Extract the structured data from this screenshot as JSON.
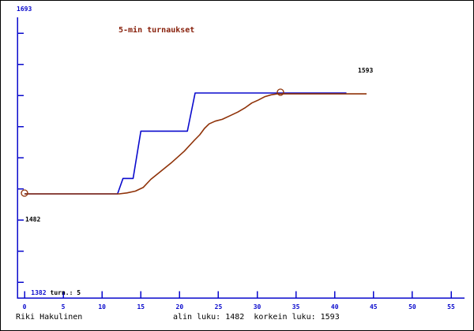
{
  "chart_data": {
    "type": "line",
    "title": "5-min turnaukset",
    "xlabel": "",
    "ylabel": "",
    "x_ticks": [
      0,
      5,
      10,
      15,
      20,
      25,
      30,
      35,
      40,
      45,
      50,
      55
    ],
    "y_axis_labels": {
      "top": "1693",
      "mid": "1482",
      "bottom": "1382"
    },
    "grid": false,
    "legend": "none",
    "series": [
      {
        "name": "tournament-rating-steps",
        "color_key": "blue",
        "points": [
          [
            0,
            1482
          ],
          [
            12,
            1482
          ],
          [
            12.7,
            1499
          ],
          [
            14,
            1499
          ],
          [
            15,
            1551
          ],
          [
            21,
            1551
          ],
          [
            22,
            1593
          ],
          [
            41.5,
            1593
          ]
        ]
      },
      {
        "name": "smoothed-rating-curve",
        "color_key": "red",
        "points": [
          [
            0,
            1482
          ],
          [
            12.2,
            1482
          ],
          [
            13.2,
            1483
          ],
          [
            14.3,
            1485
          ],
          [
            15.3,
            1489
          ],
          [
            16.3,
            1498
          ],
          [
            17.3,
            1505
          ],
          [
            18.9,
            1516
          ],
          [
            20.6,
            1529
          ],
          [
            21.9,
            1541
          ],
          [
            22.6,
            1547
          ],
          [
            23.2,
            1554
          ],
          [
            23.8,
            1559
          ],
          [
            24.6,
            1562
          ],
          [
            25.5,
            1564
          ],
          [
            26.5,
            1568
          ],
          [
            27.5,
            1572
          ],
          [
            28.5,
            1577
          ],
          [
            29.3,
            1582
          ],
          [
            30.1,
            1585
          ],
          [
            31.0,
            1589
          ],
          [
            31.8,
            1591
          ],
          [
            32.6,
            1592
          ],
          [
            41.4,
            1592
          ],
          [
            44.1,
            1592
          ]
        ]
      }
    ],
    "markers": [
      {
        "x": 0,
        "rating": 1482
      },
      {
        "x": 33,
        "rating": 1593
      }
    ],
    "lowest_rating": 1482,
    "highest_rating": 1593,
    "tournament_count": 5
  },
  "annotations": {
    "peak_label": "1593",
    "min_axis_label": "1382",
    "turn_label": "turn.: 5"
  },
  "footer": {
    "player": "Riki Hakulinen",
    "stats": "alin luku: 1482  korkein luku: 1593"
  },
  "colors": {
    "blue": "#0a0acd",
    "red": "#8f3208",
    "title": "#871f0a",
    "black": "#000000"
  }
}
